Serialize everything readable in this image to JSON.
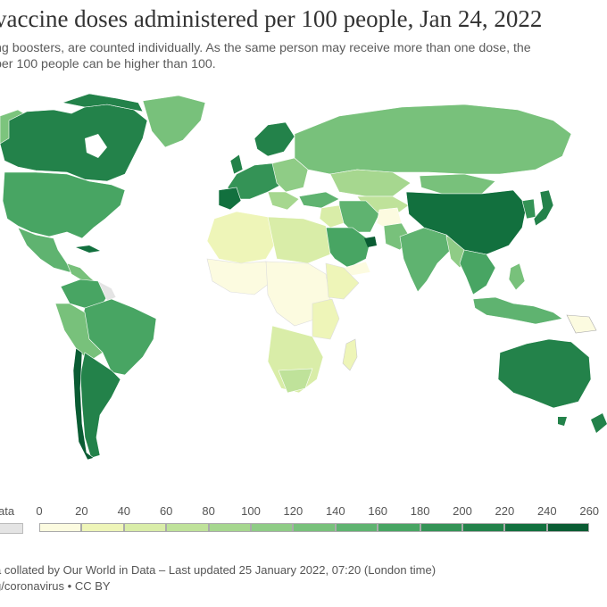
{
  "title": "vaccine doses administered per 100 people, Jan 24, 2022",
  "subtitle_line1": "ng boosters, are counted individually. As the same person may receive more than one dose, the",
  "subtitle_line2": "per 100 people can be higher than 100.",
  "legend": {
    "no_data_label": "ata",
    "no_data_color": "#e4e4e4",
    "ticks": [
      "0",
      "20",
      "40",
      "60",
      "80",
      "100",
      "120",
      "140",
      "160",
      "180",
      "200",
      "220",
      "240",
      "260"
    ],
    "colors": [
      "#fcfbe0",
      "#eef5b8",
      "#d9eda8",
      "#bfe29a",
      "#a6d78f",
      "#8fcc86",
      "#78c17b",
      "#5fb370",
      "#48a563",
      "#349356",
      "#23824a",
      "#12703e",
      "#0a5c33"
    ]
  },
  "footer_line1": "a collated by Our World in Data – Last updated 25 January 2022, 07:20 (London time)",
  "footer_line2": "g/coronavirus • CC BY"
}
